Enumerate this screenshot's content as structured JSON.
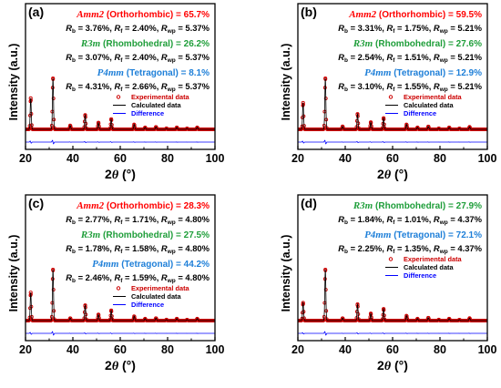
{
  "figure": {
    "xlabel_prefix": "2",
    "xlabel_theta": "θ",
    "xlabel_unit": " (°)",
    "ylabel": "Intensity (a.u.)",
    "legend": {
      "experimental": "Experimental data",
      "calculated": "Calculated data",
      "difference": "Difference"
    },
    "colors": {
      "orthorhombic": "#ff0000",
      "rhombohedral": "#1f9e3a",
      "tetragonal": "#1e7fd8",
      "experimental": "#cc0000",
      "calculated": "#000000",
      "difference": "#0000ff"
    }
  },
  "chart_data": [
    {
      "panel": "(a)",
      "type": "line",
      "xlim": [
        20,
        100
      ],
      "xticks": [
        20,
        40,
        60,
        80,
        100
      ],
      "series_names": [
        "Experimental data",
        "Calculated data",
        "Difference"
      ],
      "peaks_2theta": [
        22.2,
        31.6,
        38.9,
        45.2,
        50.8,
        56.2,
        65.9,
        70.5,
        75.1,
        79.5,
        83.9,
        88.2,
        92.5
      ],
      "peak_rel_intensity": [
        0.61,
        1.0,
        0.08,
        0.28,
        0.13,
        0.2,
        0.1,
        0.04,
        0.05,
        0.02,
        0.04,
        0.02,
        0.04
      ],
      "phases": [
        {
          "name": "Amm2",
          "system": " (Orthorhombic) = 65.7%",
          "color_key": "orthorhombic",
          "Rb": "3.76%",
          "Rf": "2.40%",
          "Rwp": "5.37%"
        },
        {
          "name": "R3m",
          "system": " (Rhombohedral) = 26.2%",
          "color_key": "rhombohedral",
          "Rb": "3.07%",
          "Rf": "2.40%",
          "Rwp": "5.37%"
        },
        {
          "name": "P4mm",
          "system": " (Tetragonal) = 8.1%",
          "color_key": "tetragonal",
          "Rb": "4.31%",
          "Rf": "2.66%",
          "Rwp": "5.37%"
        }
      ]
    },
    {
      "panel": "(b)",
      "type": "line",
      "xlim": [
        20,
        100
      ],
      "xticks": [
        20,
        40,
        60,
        80,
        100
      ],
      "series_names": [
        "Experimental data",
        "Calculated data",
        "Difference"
      ],
      "peaks_2theta": [
        22.2,
        31.6,
        38.9,
        45.2,
        50.8,
        56.2,
        65.9,
        70.5,
        75.1,
        79.5,
        83.9,
        88.2,
        92.5
      ],
      "peak_rel_intensity": [
        0.52,
        1.0,
        0.06,
        0.3,
        0.14,
        0.22,
        0.1,
        0.04,
        0.06,
        0.02,
        0.04,
        0.02,
        0.05
      ],
      "phases": [
        {
          "name": "Amm2",
          "system": " (Orthorhombic) = 59.5%",
          "color_key": "orthorhombic",
          "Rb": "3.31%",
          "Rf": "1.75%",
          "Rwp": "5.21%"
        },
        {
          "name": "R3m",
          "system": " (Rhombohedral) = 27.6%",
          "color_key": "rhombohedral",
          "Rb": "2.54%",
          "Rf": "1.51%",
          "Rwp": "5.21%"
        },
        {
          "name": "P4mm",
          "system": " (Tetragonal) = 12.9%",
          "color_key": "tetragonal",
          "Rb": "3.10%",
          "Rf": "1.55%",
          "Rwp": "5.21%"
        }
      ]
    },
    {
      "panel": "(c)",
      "type": "line",
      "xlim": [
        20,
        100
      ],
      "xticks": [
        20,
        40,
        60,
        80,
        100
      ],
      "series_names": [
        "Experimental data",
        "Calculated data",
        "Difference"
      ],
      "peaks_2theta": [
        22.2,
        31.6,
        38.9,
        45.2,
        50.8,
        56.2,
        65.9,
        70.5,
        75.1,
        79.5,
        83.9,
        88.2,
        92.5
      ],
      "peak_rel_intensity": [
        0.55,
        1.0,
        0.05,
        0.3,
        0.12,
        0.2,
        0.09,
        0.04,
        0.05,
        0.02,
        0.04,
        0.02,
        0.04
      ],
      "phases": [
        {
          "name": "Amm2",
          "system": " (Orthorhombic) = 28.3%",
          "color_key": "orthorhombic",
          "Rb": "2.77%",
          "Rf": "1.71%",
          "Rwp": "4.80%"
        },
        {
          "name": "R3m",
          "system": " (Rhombohedral) = 27.5%",
          "color_key": "rhombohedral",
          "Rb": "1.78%",
          "Rf": "1.58%",
          "Rwp": "4.80%"
        },
        {
          "name": "P4mm",
          "system": " (Tetragonal) = 44.2%",
          "color_key": "tetragonal",
          "Rb": "2.46%",
          "Rf": "1.59%",
          "Rwp": "4.80%"
        }
      ]
    },
    {
      "panel": "(d)",
      "type": "line",
      "xlim": [
        20,
        100
      ],
      "xticks": [
        20,
        40,
        60,
        80,
        100
      ],
      "series_names": [
        "Experimental data",
        "Calculated data",
        "Difference"
      ],
      "peaks_2theta": [
        22.2,
        31.6,
        38.9,
        45.2,
        50.8,
        56.2,
        65.9,
        70.5,
        75.1,
        79.5,
        83.9,
        88.2,
        92.5
      ],
      "peak_rel_intensity": [
        0.35,
        1.0,
        0.05,
        0.32,
        0.14,
        0.23,
        0.1,
        0.04,
        0.06,
        0.02,
        0.04,
        0.02,
        0.05
      ],
      "phases": [
        {
          "name": "R3m",
          "system": " (Rhombohedral) = 27.9%",
          "color_key": "rhombohedral",
          "Rb": "1.84%",
          "Rf": "1.01%",
          "Rwp": "4.37%"
        },
        {
          "name": "P4mm",
          "system": " (Tetragonal) = 72.1%",
          "color_key": "tetragonal",
          "Rb": "2.25%",
          "Rf": "1.35%",
          "Rwp": "4.37%"
        }
      ]
    }
  ]
}
